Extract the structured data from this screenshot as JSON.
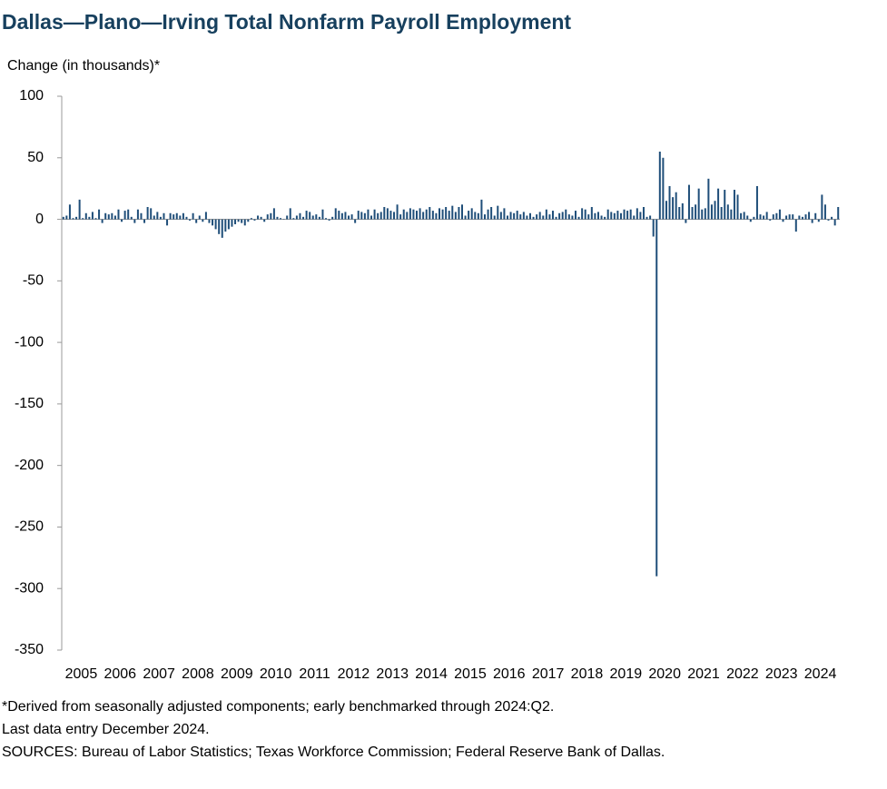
{
  "chart_data": {
    "type": "bar",
    "title": "Dallas—Plano—Irving Total Nonfarm Payroll Employment",
    "y_label": "Change (in thousands)*",
    "notes": [
      "*Derived from seasonally adjusted components; early benchmarked through 2024:Q2.",
      "Last data entry December 2024.",
      "SOURCES: Bureau of Labor Statistics; Texas Workforce Commission; Federal Reserve Bank of Dallas."
    ],
    "color": "#1f4e79",
    "ylim": [
      -350,
      100
    ],
    "yticks": [
      100,
      50,
      0,
      -50,
      -100,
      -150,
      -200,
      -250,
      -300,
      -350
    ],
    "categories": [
      "2005",
      null,
      null,
      null,
      null,
      null,
      null,
      null,
      null,
      null,
      null,
      null,
      "2006",
      null,
      null,
      null,
      null,
      null,
      null,
      null,
      null,
      null,
      null,
      null,
      "2007",
      null,
      null,
      null,
      null,
      null,
      null,
      null,
      null,
      null,
      null,
      null,
      "2008",
      null,
      null,
      null,
      null,
      null,
      null,
      null,
      null,
      null,
      null,
      null,
      "2009",
      null,
      null,
      null,
      null,
      null,
      null,
      null,
      null,
      null,
      null,
      null,
      "2010",
      null,
      null,
      null,
      null,
      null,
      null,
      null,
      null,
      null,
      null,
      null,
      "2011",
      null,
      null,
      null,
      null,
      null,
      null,
      null,
      null,
      null,
      null,
      null,
      "2012",
      null,
      null,
      null,
      null,
      null,
      null,
      null,
      null,
      null,
      null,
      null,
      "2013",
      null,
      null,
      null,
      null,
      null,
      null,
      null,
      null,
      null,
      null,
      null,
      "2014",
      null,
      null,
      null,
      null,
      null,
      null,
      null,
      null,
      null,
      null,
      null,
      "2015",
      null,
      null,
      null,
      null,
      null,
      null,
      null,
      null,
      null,
      null,
      null,
      "2016",
      null,
      null,
      null,
      null,
      null,
      null,
      null,
      null,
      null,
      null,
      null,
      "2017",
      null,
      null,
      null,
      null,
      null,
      null,
      null,
      null,
      null,
      null,
      null,
      "2018",
      null,
      null,
      null,
      null,
      null,
      null,
      null,
      null,
      null,
      null,
      null,
      "2019",
      null,
      null,
      null,
      null,
      null,
      null,
      null,
      null,
      null,
      null,
      null,
      "2020",
      null,
      null,
      null,
      null,
      null,
      null,
      null,
      null,
      null,
      null,
      null,
      "2021",
      null,
      null,
      null,
      null,
      null,
      null,
      null,
      null,
      null,
      null,
      null,
      "2022",
      null,
      null,
      null,
      null,
      null,
      null,
      null,
      null,
      null,
      null,
      null,
      "2023",
      null,
      null,
      null,
      null,
      null,
      null,
      null,
      null,
      null,
      null,
      null,
      "2024",
      null,
      null,
      null,
      null,
      null,
      null,
      null,
      null,
      null,
      null,
      null
    ],
    "values": [
      2,
      3,
      12,
      1,
      2,
      16,
      1,
      5,
      2,
      6,
      1,
      8,
      -3,
      5,
      4,
      5,
      3,
      8,
      -2,
      7,
      8,
      2,
      -3,
      8,
      5,
      -3,
      10,
      9,
      3,
      6,
      2,
      5,
      -5,
      5,
      4,
      5,
      3,
      5,
      2,
      -1,
      5,
      -3,
      3,
      -2,
      6,
      -3,
      -5,
      -8,
      -12,
      -15,
      -10,
      -8,
      -6,
      -4,
      -2,
      -3,
      -5,
      -2,
      1,
      -1,
      3,
      2,
      -2,
      4,
      5,
      9,
      2,
      1,
      0,
      3,
      9,
      1,
      3,
      5,
      2,
      7,
      6,
      3,
      4,
      2,
      8,
      1,
      -1,
      2,
      9,
      7,
      5,
      6,
      3,
      4,
      -3,
      7,
      6,
      5,
      8,
      3,
      8,
      5,
      6,
      10,
      9,
      7,
      6,
      12,
      4,
      8,
      6,
      9,
      8,
      7,
      9,
      6,
      8,
      10,
      7,
      5,
      9,
      8,
      10,
      7,
      11,
      6,
      10,
      12,
      3,
      7,
      9,
      6,
      5,
      16,
      4,
      8,
      10,
      3,
      11,
      6,
      9,
      3,
      6,
      5,
      7,
      4,
      6,
      3,
      5,
      2,
      4,
      6,
      3,
      8,
      4,
      7,
      2,
      5,
      6,
      8,
      4,
      3,
      7,
      2,
      9,
      8,
      4,
      10,
      5,
      6,
      3,
      2,
      8,
      6,
      5,
      7,
      5,
      8,
      7,
      8,
      3,
      9,
      6,
      10,
      2,
      3,
      -14,
      -290,
      55,
      50,
      15,
      27,
      18,
      22,
      10,
      13,
      -3,
      28,
      10,
      12,
      25,
      8,
      9,
      33,
      12,
      15,
      25,
      10,
      24,
      12,
      8,
      24,
      20,
      5,
      6,
      3,
      -2,
      2,
      27,
      4,
      3,
      6,
      -1,
      4,
      5,
      8,
      -2,
      3,
      4,
      4,
      -10,
      3,
      2,
      4,
      6,
      -3,
      5,
      -2,
      20,
      12,
      -1,
      2,
      -5,
      10
    ]
  }
}
